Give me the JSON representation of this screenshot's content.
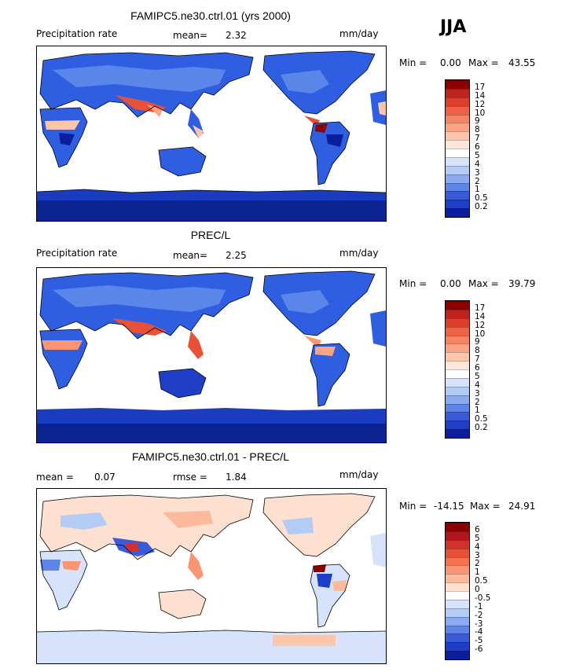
{
  "season": "JJA",
  "panels": [
    {
      "title": "FAMIPC5.ne30.ctrl.01 (yrs 2000)",
      "left_label": "Precipitation rate",
      "stat1_label": "mean=",
      "stat1_value": "2.32",
      "units": "mm/day",
      "min_label": "Min =",
      "min_value": "0.00",
      "max_label": "Max =",
      "max_value": "43.55",
      "colorbar": {
        "labels": [
          "17",
          "14",
          "12",
          "10",
          "9",
          "8",
          "7",
          "6",
          "5",
          "4",
          "3",
          "2",
          "1",
          "0.5",
          "0.2"
        ],
        "colors": [
          "#8b0000",
          "#c0221d",
          "#dd3e2c",
          "#ef6246",
          "#f58462",
          "#fca385",
          "#fdc6ac",
          "#fde6da",
          "#ffffff",
          "#d6e3fa",
          "#b3ccf5",
          "#8baaf0",
          "#5d85e8",
          "#3a5ad9",
          "#1f3ec8",
          "#0b1f9e"
        ]
      }
    },
    {
      "title": "PREC/L",
      "left_label": "Precipitation rate",
      "stat1_label": "mean=",
      "stat1_value": "2.25",
      "units": "mm/day",
      "min_label": "Min =",
      "min_value": "0.00",
      "max_label": "Max =",
      "max_value": "39.79",
      "colorbar": {
        "labels": [
          "17",
          "14",
          "12",
          "10",
          "9",
          "8",
          "7",
          "6",
          "5",
          "4",
          "3",
          "2",
          "1",
          "0.5",
          "0.2"
        ],
        "colors": [
          "#8b0000",
          "#c0221d",
          "#dd3e2c",
          "#ef6246",
          "#f58462",
          "#fca385",
          "#fdc6ac",
          "#fde6da",
          "#ffffff",
          "#d6e3fa",
          "#b3ccf5",
          "#8baaf0",
          "#5d85e8",
          "#3a5ad9",
          "#1f3ec8",
          "#0b1f9e"
        ]
      }
    },
    {
      "title": "FAMIPC5.ne30.ctrl.01 - PREC/L",
      "left_label": "mean =",
      "left_value": "0.07",
      "stat1_label": "rmse =",
      "stat1_value": "1.84",
      "units": "mm/day",
      "min_label": "Min =",
      "min_value": "-14.15",
      "max_label": "Max =",
      "max_value": "24.91",
      "colorbar": {
        "labels": [
          "6",
          "5",
          "4",
          "3",
          "2",
          "1",
          "0.5",
          "0",
          "-0.5",
          "-1",
          "-2",
          "-3",
          "-4",
          "-5",
          "-6"
        ],
        "colors": [
          "#8b0000",
          "#b2151a",
          "#d0312a",
          "#e85038",
          "#f6724f",
          "#fb9573",
          "#fdb99c",
          "#fde0d0",
          "#ffffff",
          "#d6e3fa",
          "#b3ccf5",
          "#8baaf0",
          "#5d85e8",
          "#3a5ad9",
          "#1f3ec8",
          "#0b1f9e"
        ]
      }
    }
  ]
}
